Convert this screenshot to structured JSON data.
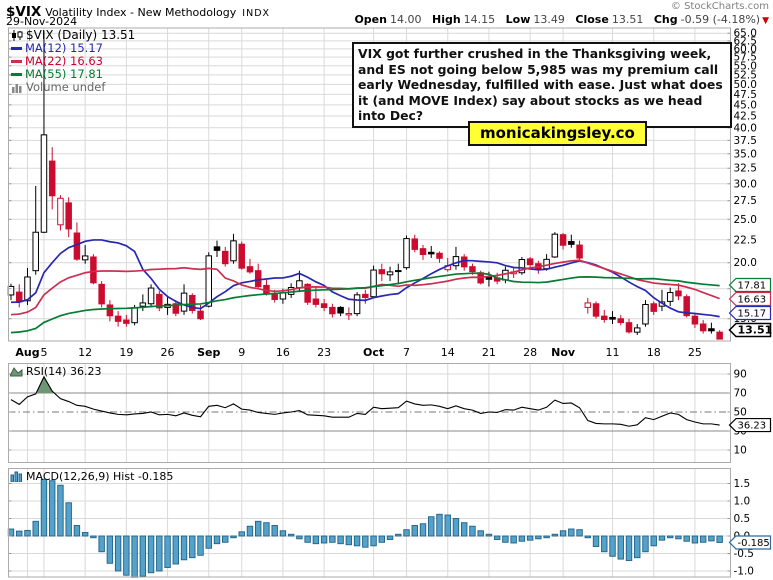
{
  "header": {
    "symbol": "$VIX",
    "title": "Volatility Index - New Methodology",
    "exchange": "INDX",
    "date": "29-Nov-2024",
    "copyright": "© StockCharts.com",
    "ohlc": {
      "open_label": "Open",
      "open": "14.00",
      "high_label": "High",
      "high": "14.15",
      "low_label": "Low",
      "low": "13.49",
      "close_label": "Close",
      "close": "13.51",
      "chg_label": "Chg",
      "chg": "-0.59 (-4.18%)",
      "chg_dir": "▼"
    }
  },
  "legend": {
    "main": "$VIX (Daily) 13.51",
    "ma12": "MA(12) 15.17",
    "ma22": "MA(22) 16.63",
    "ma55": "MA(55) 17.81",
    "volume": "Volume undef"
  },
  "annotation": {
    "text": "VIX got further crushed in the Thanksgiving week, and ES not going below 5,985 was my premium call early Wednesday, fulfilled with ease. Just what does it (and MOVE Index) say about stocks as we head into Dec?"
  },
  "watermark": {
    "text": "monicakingsley.co",
    "bg": "#ffff33"
  },
  "colors": {
    "candle_up": "#000000",
    "candle_down": "#cc0c2f",
    "ma12": "#2727b0",
    "ma22": "#cc2e50",
    "ma55": "#077a33",
    "last_close": "#000000",
    "macd_fill": "#54a1ca",
    "macd_stroke": "#1e6288",
    "macd_box": "#2e6e9e",
    "rsi_fill": "#6f9674",
    "chg_red": "#cc0000",
    "grid": "#d9d9d9",
    "panel_border": "#ababab"
  },
  "chart_data": {
    "type": "candlestick+indicators",
    "price_panel": {
      "scale": "log",
      "yaxis_labels": [
        "65.0",
        "62.5",
        "60.0",
        "57.5",
        "55.0",
        "52.5",
        "50.0",
        "47.5",
        "45.0",
        "42.5",
        "40.0",
        "37.5",
        "35.0",
        "32.5",
        "30.0",
        "27.5",
        "25.0",
        "22.5",
        "20.0",
        "17.5",
        "15.0"
      ],
      "yaxis_values": [
        65,
        62.5,
        60,
        57.5,
        55,
        52.5,
        50,
        47.5,
        45,
        42.5,
        40,
        37.5,
        35,
        32.5,
        30,
        27.5,
        25,
        22.5,
        20,
        17.5,
        15
      ],
      "ma_overlays": [
        {
          "name": "MA(12)",
          "period": 12,
          "last": 15.17
        },
        {
          "name": "MA(22)",
          "period": 22,
          "last": 16.63
        },
        {
          "name": "MA(55)",
          "period": 55,
          "last": 17.81
        }
      ],
      "value_boxes": [
        {
          "label": "17.81",
          "series": "MA(55)"
        },
        {
          "label": "16.63",
          "series": "MA(22)"
        },
        {
          "label": "15.17",
          "series": "MA(12)"
        },
        {
          "label": "13.51",
          "series": "close",
          "bold": true
        }
      ],
      "candles": [
        {
          "d": "Jul 30",
          "o": 16.95,
          "h": 17.95,
          "l": 16.5,
          "c": 17.71
        },
        {
          "d": "Jul 31",
          "o": 17.2,
          "h": 17.9,
          "l": 15.9,
          "c": 16.36
        },
        {
          "d": "Aug 1",
          "o": 16.45,
          "h": 19.48,
          "l": 16.1,
          "c": 18.59
        },
        {
          "d": "Aug 2",
          "o": 19.2,
          "h": 29.66,
          "l": 18.8,
          "c": 23.39
        },
        {
          "d": "Aug 5",
          "o": 23.39,
          "h": 65.73,
          "l": 23.3,
          "c": 38.57
        },
        {
          "d": "Aug 6",
          "o": 33.71,
          "h": 36.2,
          "l": 26.3,
          "c": 28.21
        },
        {
          "d": "Aug 7",
          "o": 24.3,
          "h": 28.3,
          "l": 23.6,
          "c": 27.85
        },
        {
          "d": "Aug 8",
          "o": 27.2,
          "h": 28.0,
          "l": 22.8,
          "c": 23.79
        },
        {
          "d": "Aug 9",
          "o": 23.3,
          "h": 24.6,
          "l": 20.2,
          "c": 20.37
        },
        {
          "d": "Aug 12",
          "o": 20.3,
          "h": 21.9,
          "l": 19.9,
          "c": 20.71
        },
        {
          "d": "Aug 13",
          "o": 20.6,
          "h": 20.9,
          "l": 17.9,
          "c": 18.04
        },
        {
          "d": "Aug 14",
          "o": 17.9,
          "h": 18.2,
          "l": 15.9,
          "c": 16.19
        },
        {
          "d": "Aug 15",
          "o": 16.1,
          "h": 16.5,
          "l": 14.8,
          "c": 15.23
        },
        {
          "d": "Aug 16",
          "o": 15.2,
          "h": 15.6,
          "l": 14.4,
          "c": 14.8
        },
        {
          "d": "Aug 19",
          "o": 14.9,
          "h": 15.3,
          "l": 14.4,
          "c": 14.65
        },
        {
          "d": "Aug 20",
          "o": 14.7,
          "h": 16.1,
          "l": 14.5,
          "c": 15.88
        },
        {
          "d": "Aug 21",
          "o": 16.0,
          "h": 17.0,
          "l": 15.6,
          "c": 16.27
        },
        {
          "d": "Aug 22",
          "o": 16.2,
          "h": 17.9,
          "l": 15.9,
          "c": 17.56
        },
        {
          "d": "Aug 23",
          "o": 17.0,
          "h": 17.3,
          "l": 15.6,
          "c": 15.86
        },
        {
          "d": "Aug 26",
          "o": 15.9,
          "h": 16.8,
          "l": 15.3,
          "c": 16.15
        },
        {
          "d": "Aug 27",
          "o": 16.2,
          "h": 16.5,
          "l": 15.2,
          "c": 15.43
        },
        {
          "d": "Aug 28",
          "o": 15.6,
          "h": 17.9,
          "l": 15.3,
          "c": 17.11
        },
        {
          "d": "Aug 29",
          "o": 16.9,
          "h": 17.1,
          "l": 15.4,
          "c": 15.65
        },
        {
          "d": "Aug 30",
          "o": 15.6,
          "h": 16.1,
          "l": 14.9,
          "c": 15.0
        },
        {
          "d": "Sep 3",
          "o": 16.0,
          "h": 21.1,
          "l": 15.9,
          "c": 20.72
        },
        {
          "d": "Sep 4",
          "o": 21.7,
          "h": 22.4,
          "l": 20.6,
          "c": 21.31
        },
        {
          "d": "Sep 5",
          "o": 21.2,
          "h": 21.7,
          "l": 19.6,
          "c": 19.9
        },
        {
          "d": "Sep 6",
          "o": 20.2,
          "h": 23.2,
          "l": 19.9,
          "c": 22.38
        },
        {
          "d": "Sep 9",
          "o": 22.0,
          "h": 22.3,
          "l": 19.3,
          "c": 19.45
        },
        {
          "d": "Sep 10",
          "o": 19.6,
          "h": 20.4,
          "l": 18.9,
          "c": 19.08
        },
        {
          "d": "Sep 11",
          "o": 19.2,
          "h": 19.9,
          "l": 17.5,
          "c": 17.69
        },
        {
          "d": "Sep 12",
          "o": 17.8,
          "h": 18.3,
          "l": 16.9,
          "c": 17.07
        },
        {
          "d": "Sep 13",
          "o": 17.0,
          "h": 17.4,
          "l": 16.3,
          "c": 16.56
        },
        {
          "d": "Sep 16",
          "o": 16.6,
          "h": 17.5,
          "l": 16.2,
          "c": 17.14
        },
        {
          "d": "Sep 17",
          "o": 17.0,
          "h": 18.0,
          "l": 16.7,
          "c": 17.61
        },
        {
          "d": "Sep 18",
          "o": 17.6,
          "h": 19.2,
          "l": 17.2,
          "c": 18.23
        },
        {
          "d": "Sep 19",
          "o": 17.9,
          "h": 18.0,
          "l": 16.1,
          "c": 16.33
        },
        {
          "d": "Sep 20",
          "o": 16.6,
          "h": 17.6,
          "l": 15.9,
          "c": 16.15
        },
        {
          "d": "Sep 23",
          "o": 16.2,
          "h": 16.6,
          "l": 15.6,
          "c": 15.89
        },
        {
          "d": "Sep 24",
          "o": 15.9,
          "h": 16.2,
          "l": 15.1,
          "c": 15.39
        },
        {
          "d": "Sep 25",
          "o": 15.9,
          "h": 16.0,
          "l": 15.2,
          "c": 15.45
        },
        {
          "d": "Sep 26",
          "o": 15.3,
          "h": 15.9,
          "l": 14.9,
          "c": 15.41
        },
        {
          "d": "Sep 27",
          "o": 15.4,
          "h": 17.2,
          "l": 15.2,
          "c": 16.96
        },
        {
          "d": "Sep 30",
          "o": 17.0,
          "h": 17.4,
          "l": 16.2,
          "c": 16.73
        },
        {
          "d": "Oct 1",
          "o": 16.8,
          "h": 19.7,
          "l": 16.7,
          "c": 19.26
        },
        {
          "d": "Oct 2",
          "o": 19.3,
          "h": 19.9,
          "l": 18.2,
          "c": 18.9
        },
        {
          "d": "Oct 3",
          "o": 18.8,
          "h": 19.6,
          "l": 18.2,
          "c": 19.08
        },
        {
          "d": "Oct 4",
          "o": 19.2,
          "h": 19.9,
          "l": 17.9,
          "c": 19.21
        },
        {
          "d": "Oct 7",
          "o": 19.5,
          "h": 23.0,
          "l": 19.3,
          "c": 22.64
        },
        {
          "d": "Oct 8",
          "o": 22.6,
          "h": 23.1,
          "l": 21.1,
          "c": 21.42
        },
        {
          "d": "Oct 9",
          "o": 21.5,
          "h": 21.9,
          "l": 20.3,
          "c": 20.86
        },
        {
          "d": "Oct 10",
          "o": 21.1,
          "h": 21.8,
          "l": 20.5,
          "c": 20.93
        },
        {
          "d": "Oct 11",
          "o": 21.0,
          "h": 21.2,
          "l": 20.0,
          "c": 20.46
        },
        {
          "d": "Oct 14",
          "o": 19.3,
          "h": 20.5,
          "l": 19.1,
          "c": 19.7
        },
        {
          "d": "Oct 15",
          "o": 19.7,
          "h": 21.7,
          "l": 19.3,
          "c": 20.64
        },
        {
          "d": "Oct 16",
          "o": 20.6,
          "h": 20.9,
          "l": 19.2,
          "c": 19.58
        },
        {
          "d": "Oct 17",
          "o": 19.6,
          "h": 19.9,
          "l": 18.8,
          "c": 19.11
        },
        {
          "d": "Oct 18",
          "o": 19.0,
          "h": 19.2,
          "l": 17.9,
          "c": 18.03
        },
        {
          "d": "Oct 21",
          "o": 18.6,
          "h": 19.1,
          "l": 17.7,
          "c": 18.37
        },
        {
          "d": "Oct 22",
          "o": 18.5,
          "h": 19.0,
          "l": 17.9,
          "c": 18.2
        },
        {
          "d": "Oct 23",
          "o": 18.3,
          "h": 19.6,
          "l": 18.0,
          "c": 19.24
        },
        {
          "d": "Oct 24",
          "o": 18.9,
          "h": 19.6,
          "l": 18.5,
          "c": 19.08
        },
        {
          "d": "Oct 25",
          "o": 19.0,
          "h": 20.6,
          "l": 18.8,
          "c": 20.33
        },
        {
          "d": "Oct 28",
          "o": 20.4,
          "h": 20.6,
          "l": 19.3,
          "c": 19.8
        },
        {
          "d": "Oct 29",
          "o": 19.9,
          "h": 20.2,
          "l": 18.9,
          "c": 19.34
        },
        {
          "d": "Oct 30",
          "o": 19.4,
          "h": 20.9,
          "l": 19.2,
          "c": 20.35
        },
        {
          "d": "Oct 31",
          "o": 20.6,
          "h": 23.4,
          "l": 20.5,
          "c": 23.16
        },
        {
          "d": "Nov 1",
          "o": 23.1,
          "h": 23.3,
          "l": 21.4,
          "c": 21.88
        },
        {
          "d": "Nov 4",
          "o": 22.3,
          "h": 23.1,
          "l": 21.6,
          "c": 21.98
        },
        {
          "d": "Nov 5",
          "o": 21.9,
          "h": 22.4,
          "l": 20.2,
          "c": 20.49
        },
        {
          "d": "Nov 6",
          "o": 15.9,
          "h": 16.7,
          "l": 15.4,
          "c": 16.27
        },
        {
          "d": "Nov 7",
          "o": 16.2,
          "h": 16.4,
          "l": 15.0,
          "c": 15.2
        },
        {
          "d": "Nov 8",
          "o": 15.2,
          "h": 15.7,
          "l": 14.7,
          "c": 14.94
        },
        {
          "d": "Nov 11",
          "o": 15.1,
          "h": 15.6,
          "l": 14.6,
          "c": 14.97
        },
        {
          "d": "Nov 12",
          "o": 15.0,
          "h": 15.3,
          "l": 14.5,
          "c": 14.71
        },
        {
          "d": "Nov 13",
          "o": 14.7,
          "h": 15.0,
          "l": 13.9,
          "c": 14.02
        },
        {
          "d": "Nov 14",
          "o": 14.0,
          "h": 14.6,
          "l": 13.8,
          "c": 14.31
        },
        {
          "d": "Nov 15",
          "o": 14.6,
          "h": 16.5,
          "l": 14.4,
          "c": 16.14
        },
        {
          "d": "Nov 18",
          "o": 16.2,
          "h": 16.4,
          "l": 15.3,
          "c": 15.58
        },
        {
          "d": "Nov 19",
          "o": 16.0,
          "h": 17.4,
          "l": 15.6,
          "c": 16.35
        },
        {
          "d": "Nov 20",
          "o": 16.4,
          "h": 17.6,
          "l": 16.0,
          "c": 17.16
        },
        {
          "d": "Nov 21",
          "o": 17.3,
          "h": 18.0,
          "l": 16.5,
          "c": 16.87
        },
        {
          "d": "Nov 22",
          "o": 16.8,
          "h": 17.0,
          "l": 15.1,
          "c": 15.24
        },
        {
          "d": "Nov 25",
          "o": 15.2,
          "h": 15.4,
          "l": 14.3,
          "c": 14.6
        },
        {
          "d": "Nov 26",
          "o": 14.6,
          "h": 14.9,
          "l": 13.9,
          "c": 14.1
        },
        {
          "d": "Nov 27",
          "o": 14.25,
          "h": 14.7,
          "l": 13.9,
          "c": 14.1
        },
        {
          "d": "Nov 29",
          "o": 14.0,
          "h": 14.15,
          "l": 13.49,
          "c": 13.51
        }
      ]
    },
    "xaxis": {
      "labels": [
        {
          "text": "Aug",
          "bold": true,
          "i": 2
        },
        {
          "text": "5",
          "bold": false,
          "i": 4
        },
        {
          "text": "12",
          "bold": false,
          "i": 9
        },
        {
          "text": "19",
          "bold": false,
          "i": 14
        },
        {
          "text": "26",
          "bold": false,
          "i": 19
        },
        {
          "text": "Sep",
          "bold": true,
          "i": 24
        },
        {
          "text": "9",
          "bold": false,
          "i": 28
        },
        {
          "text": "16",
          "bold": false,
          "i": 33
        },
        {
          "text": "23",
          "bold": false,
          "i": 38
        },
        {
          "text": "Oct",
          "bold": true,
          "i": 44
        },
        {
          "text": "7",
          "bold": false,
          "i": 48
        },
        {
          "text": "14",
          "bold": false,
          "i": 53
        },
        {
          "text": "21",
          "bold": false,
          "i": 58
        },
        {
          "text": "28",
          "bold": false,
          "i": 63
        },
        {
          "text": "Nov",
          "bold": true,
          "i": 67
        },
        {
          "text": "11",
          "bold": false,
          "i": 73
        },
        {
          "text": "18",
          "bold": false,
          "i": 78
        },
        {
          "text": "25",
          "bold": false,
          "i": 83
        }
      ]
    },
    "rsi_panel": {
      "label": "RSI(14) 36.23",
      "last": "36.23",
      "overbought": 70,
      "midline": 50,
      "oversold": 30,
      "yaxis_labels": [
        "90",
        "70",
        "50",
        "30",
        "10"
      ],
      "yaxis_values": [
        90,
        70,
        50,
        30,
        10
      ],
      "values": [
        63,
        58,
        66,
        69,
        87,
        72,
        64,
        61,
        57,
        56,
        53,
        51,
        49,
        47.5,
        47,
        48,
        48.5,
        50,
        47,
        47.5,
        46,
        49,
        46.5,
        45,
        56,
        57,
        54.5,
        58.5,
        53,
        52,
        49.5,
        48.5,
        47.5,
        49,
        50,
        51.5,
        47,
        46.5,
        46,
        44.5,
        44.5,
        44.5,
        48.5,
        47.5,
        55,
        53.5,
        54,
        54.5,
        61.5,
        58.5,
        57,
        57.5,
        56,
        53.5,
        56.5,
        53.5,
        52,
        48.5,
        50,
        49.5,
        52.5,
        52,
        55,
        53.5,
        52,
        55,
        62.5,
        59,
        59.5,
        54.5,
        41,
        38,
        37.5,
        37.5,
        37,
        35,
        36.5,
        44,
        42,
        45.5,
        49,
        47.5,
        42,
        39.5,
        37.5,
        37.5,
        36.23
      ]
    },
    "macd_panel": {
      "label": "MACD(12,26,9) Hist -0.185",
      "last": "-0.185",
      "yaxis_labels": [
        "1.5",
        "1.0",
        "0.5",
        "0.0",
        "-0.5",
        "-1.0"
      ],
      "yaxis_values": [
        1.5,
        1.0,
        0.5,
        0.0,
        -0.5,
        -1.0
      ],
      "hist": [
        0.2,
        0.14,
        0.16,
        0.42,
        1.62,
        1.58,
        1.45,
        0.95,
        0.3,
        0.1,
        -0.05,
        -0.45,
        -0.78,
        -1.0,
        -1.12,
        -1.18,
        -1.15,
        -1.05,
        -1.0,
        -0.9,
        -0.8,
        -0.68,
        -0.62,
        -0.55,
        -0.35,
        -0.22,
        -0.18,
        -0.05,
        0.12,
        0.28,
        0.42,
        0.38,
        0.3,
        0.15,
        0.05,
        -0.08,
        -0.18,
        -0.22,
        -0.2,
        -0.18,
        -0.22,
        -0.25,
        -0.28,
        -0.32,
        -0.28,
        -0.18,
        -0.1,
        0.05,
        0.18,
        0.3,
        0.35,
        0.55,
        0.62,
        0.6,
        0.5,
        0.38,
        0.28,
        0.15,
        0.05,
        -0.1,
        -0.18,
        -0.2,
        -0.15,
        -0.12,
        -0.08,
        -0.05,
        0.05,
        0.15,
        0.2,
        0.18,
        -0.05,
        -0.3,
        -0.45,
        -0.58,
        -0.66,
        -0.7,
        -0.62,
        -0.45,
        -0.28,
        -0.12,
        -0.05,
        -0.08,
        -0.15,
        -0.2,
        -0.18,
        -0.14,
        -0.185
      ]
    }
  }
}
